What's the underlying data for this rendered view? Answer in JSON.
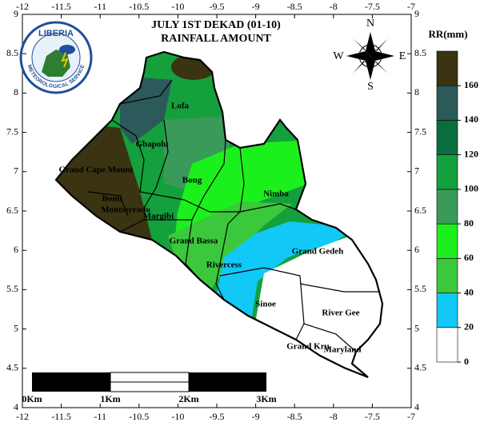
{
  "header": {
    "title": "JULY 1ST DEKAD (01-10)",
    "subtitle": "RAINFALL AMOUNT"
  },
  "logo": {
    "name": "LIBERIA",
    "agency": "METEOROLOGICAL SERVICE"
  },
  "compass": {
    "n": "N",
    "s": "S",
    "e": "E",
    "w": "W"
  },
  "map": {
    "xlim": [
      -12,
      -7
    ],
    "ylim": [
      4,
      9
    ],
    "xticks": [
      -12,
      -11.5,
      -11,
      -10.5,
      -10,
      -9.5,
      -9,
      -8.5,
      -8,
      -7.5,
      -7
    ],
    "yticks": [
      4,
      4.5,
      5,
      5.5,
      6,
      6.5,
      7,
      7.5,
      8,
      8.5,
      9
    ],
    "counties": [
      "Lofa",
      "Gbapolu",
      "Grand Cape Mount",
      "Bong",
      "Nimba",
      "Bomi",
      "Montserrado",
      "Margibi",
      "Grand Bassa",
      "Rivercess",
      "Grand Gedeh",
      "Sinoe",
      "River Gee",
      "Grand Kru",
      "Maryland"
    ]
  },
  "legend": {
    "title": "RR(mm)",
    "lim": [
      0,
      180
    ],
    "ticks": [
      0,
      20,
      40,
      60,
      80,
      100,
      120,
      140,
      160
    ],
    "colors": [
      "#ffffff",
      "#12c8f6",
      "#3cc83c",
      "#1cf01c",
      "#3a9a5a",
      "#14a03c",
      "#0a6e3c",
      "#2c5a5a",
      "#3a3412"
    ]
  },
  "scale_bar": {
    "labels": [
      "0Km",
      "1Km",
      "2Km",
      "3Km"
    ]
  }
}
